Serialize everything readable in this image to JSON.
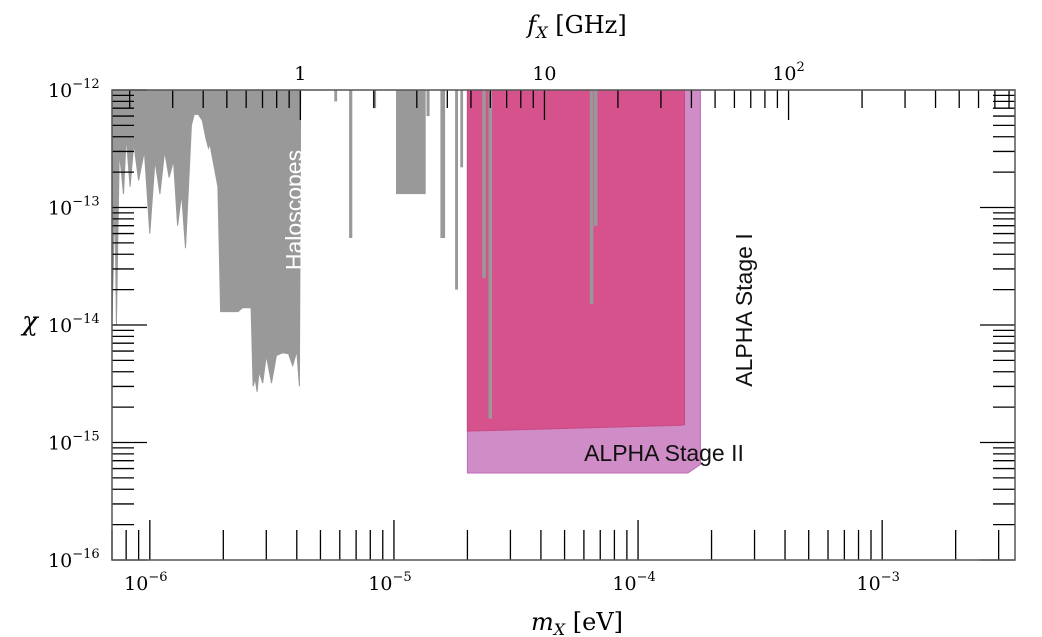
{
  "chart_data": {
    "type": "area",
    "xlabel_main": "m",
    "xlabel_sub": "X",
    "xlabel_unit": " [eV]",
    "top_label_main": "f",
    "top_label_sub": "X",
    "top_label_unit": " [GHz]",
    "ylabel": "χ",
    "x_scale": "log",
    "y_scale": "log",
    "xlim_eV": [
      7e-07,
      0.0035
    ],
    "ylim": [
      1e-16,
      1e-12
    ],
    "bottom_ticks": [
      {
        "value": 1e-06,
        "base": "10",
        "exp": "−6"
      },
      {
        "value": 1e-05,
        "base": "10",
        "exp": "−5"
      },
      {
        "value": 0.0001,
        "base": "10",
        "exp": "−4"
      },
      {
        "value": 0.001,
        "base": "10",
        "exp": "−3"
      }
    ],
    "top_ticks": [
      {
        "value_GHz": 1,
        "base": "1",
        "exp": ""
      },
      {
        "value_GHz": 10,
        "base": "10",
        "exp": ""
      },
      {
        "value_GHz": 100,
        "base": "10",
        "exp": "2"
      }
    ],
    "left_ticks": [
      {
        "value": 1e-12,
        "base": "10",
        "exp": "−12"
      },
      {
        "value": 1e-13,
        "base": "10",
        "exp": "−13"
      },
      {
        "value": 1e-14,
        "base": "10",
        "exp": "−14"
      },
      {
        "value": 1e-15,
        "base": "10",
        "exp": "−15"
      },
      {
        "value": 1e-16,
        "base": "10",
        "exp": "−16"
      }
    ],
    "regions": [
      {
        "name": "ALPHA Stage II",
        "label": "ALPHA Stage II",
        "color": "#cf8cc6",
        "edge": "#c06ab6",
        "points": [
          [
            2e-05,
            1e-15
          ],
          [
            2e-05,
            5.5e-16
          ],
          [
            0.00016,
            5.5e-16
          ],
          [
            0.00018,
            6.5e-16
          ],
          [
            0.00018,
            1e-12
          ],
          [
            2e-05,
            1e-12
          ]
        ]
      },
      {
        "name": "ALPHA Stage I",
        "label": "ALPHA Stage I",
        "color": "#d6528c",
        "edge": "#c84a84",
        "points": [
          [
            2e-05,
            1e-12
          ],
          [
            2e-05,
            1.25e-15
          ],
          [
            0.00015,
            1.4e-15
          ],
          [
            0.000155,
            1.42e-15
          ],
          [
            0.000155,
            1e-12
          ]
        ]
      },
      {
        "name": "Haloscopes",
        "label": "Haloscopes",
        "color": "#999999",
        "points": [
          [
            7e-07,
            1.1e-14
          ],
          [
            7.2e-07,
            1.2e-13
          ],
          [
            7.3e-07,
            1e-14
          ],
          [
            7.5e-07,
            3e-13
          ],
          [
            7.8e-07,
            1.3e-13
          ],
          [
            8e-07,
            4e-13
          ],
          [
            8.3e-07,
            1.5e-13
          ],
          [
            8.6e-07,
            3.5e-13
          ],
          [
            9e-07,
            1.7e-13
          ],
          [
            9.5e-07,
            3e-13
          ],
          [
            1e-06,
            6e-14
          ],
          [
            1.05e-06,
            2.5e-13
          ],
          [
            1.1e-06,
            1.3e-13
          ],
          [
            1.15e-06,
            3e-13
          ],
          [
            1.2e-06,
            1.8e-13
          ],
          [
            1.25e-06,
            2.5e-13
          ],
          [
            1.3e-06,
            7e-14
          ],
          [
            1.35e-06,
            1.3e-13
          ],
          [
            1.4e-06,
            4.5e-14
          ],
          [
            1.45e-06,
            2e-13
          ],
          [
            1.48e-06,
            5e-13
          ],
          [
            1.52e-06,
            6.2e-13
          ],
          [
            1.58e-06,
            6.2e-13
          ],
          [
            1.64e-06,
            5.5e-13
          ],
          [
            1.7e-06,
            3.8e-13
          ],
          [
            1.74e-06,
            3.2e-13
          ],
          [
            1.76e-06,
            3.5e-13
          ],
          [
            1.9e-06,
            1.5e-13
          ],
          [
            1.95e-06,
            1.3e-14
          ],
          [
            2.3e-06,
            1.3e-14
          ],
          [
            2.4e-06,
            1.4e-14
          ],
          [
            2.6e-06,
            1.4e-14
          ],
          [
            2.65e-06,
            3e-15
          ],
          [
            2.7e-06,
            3.5e-15
          ],
          [
            2.75e-06,
            2.7e-15
          ],
          [
            2.8e-06,
            4e-15
          ],
          [
            2.9e-06,
            3.2e-15
          ],
          [
            3e-06,
            5.5e-15
          ],
          [
            3.15e-06,
            3.2e-15
          ],
          [
            3.3e-06,
            5.5e-15
          ],
          [
            3.5e-06,
            5.8e-15
          ],
          [
            3.7e-06,
            5.7e-15
          ],
          [
            3.85e-06,
            4.5e-15
          ],
          [
            4e-06,
            6e-15
          ],
          [
            4.1e-06,
            3e-15
          ],
          [
            4.15e-06,
            1e-12
          ],
          [
            7e-07,
            1e-12
          ]
        ]
      }
    ],
    "gray_lines": [
      {
        "x": 2.34e-05,
        "y_bottom": 2.5e-14
      },
      {
        "x": 2.48e-05,
        "y_bottom": 1.6e-15
      },
      {
        "x": 6.45e-05,
        "y_bottom": 1.5e-14
      },
      {
        "x": 6.7e-05,
        "y_bottom": 7e-14
      }
    ],
    "gray_spikes": [
      {
        "x": [
          5.7e-06,
          5.85e-06
        ],
        "y_bottom": 8e-13
      },
      {
        "x": [
          6.55e-06,
          6.75e-06
        ],
        "y_bottom": 5.5e-14
      },
      {
        "x": [
          8.2e-06,
          8.45e-06
        ],
        "y_bottom": 7e-13
      },
      {
        "x": [
          1.02e-05,
          1.35e-05
        ],
        "y_bottom": 1.3e-13
      },
      {
        "x": [
          1.36e-05,
          1.4e-05
        ],
        "y_bottom": 6e-13
      },
      {
        "x": [
          1.55e-05,
          1.62e-05
        ],
        "y_bottom": 5.5e-14
      },
      {
        "x": [
          1.78e-05,
          1.83e-05
        ],
        "y_bottom": 2e-14
      },
      {
        "x": [
          1.87e-05,
          1.92e-05
        ],
        "y_bottom": 2.2e-13
      }
    ]
  }
}
